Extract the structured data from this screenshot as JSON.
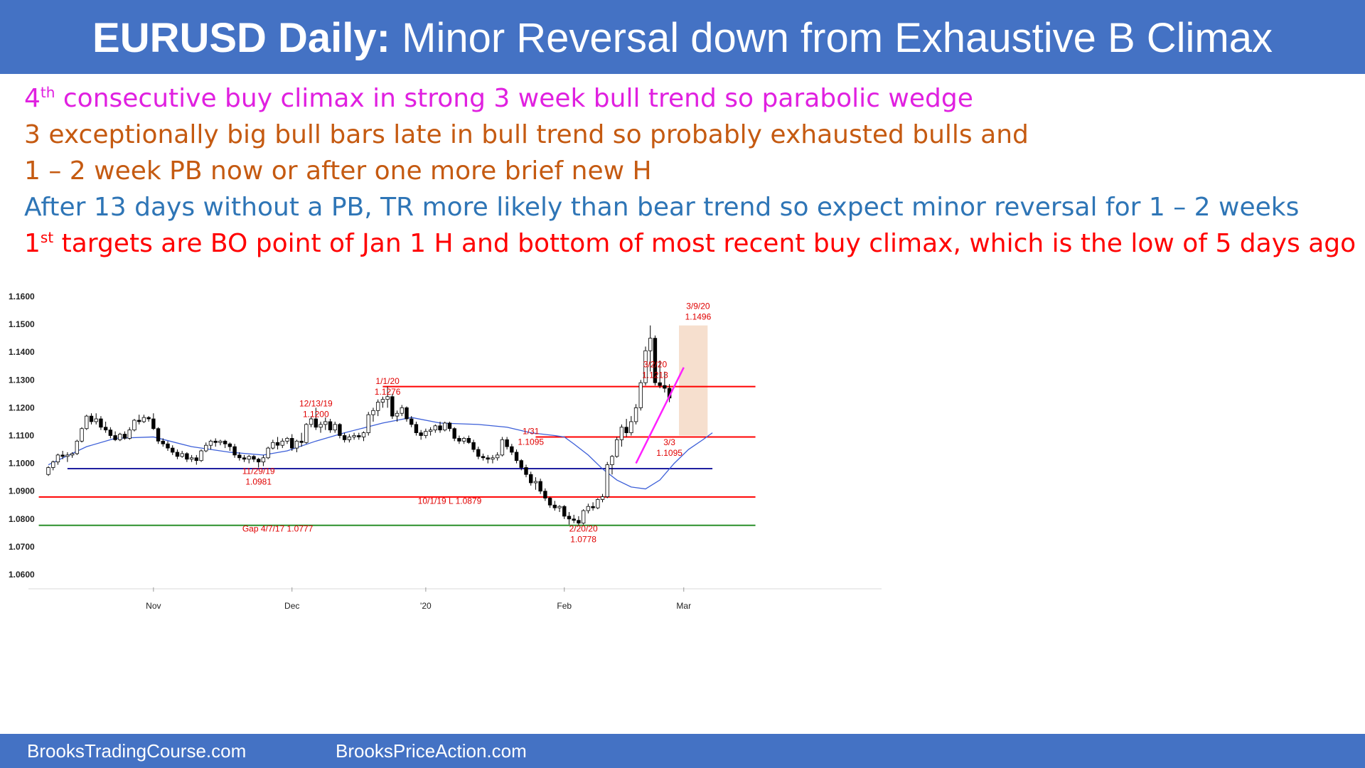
{
  "title": {
    "bold": "EURUSD Daily:",
    "rest": "Minor Reversal down from Exhaustive B Climax"
  },
  "notes": [
    {
      "pre": "4",
      "sup": "th",
      "text": " consecutive buy climax in strong 3 week bull trend so parabolic wedge",
      "color": "#e020e0"
    },
    {
      "pre": "",
      "sup": "",
      "text": "3 exceptionally big bull bars late in bull trend so probably exhausted bulls and",
      "color": "#c55a11"
    },
    {
      "pre": "",
      "sup": "",
      "text": "1 – 2 week PB now or after one more brief new H",
      "color": "#c55a11"
    },
    {
      "pre": "",
      "sup": "",
      "text": "After 13 days without a PB, TR more likely than bear trend so expect minor reversal for 1 – 2 weeks",
      "color": "#2e75b6"
    },
    {
      "pre": "1",
      "sup": "st",
      "text": " targets are BO point of Jan 1 H and bottom of most recent buy climax, which is the low of 5 days ago",
      "color": "#ff0000"
    }
  ],
  "footer": {
    "left": "BrooksTradingCourse.com",
    "right": "BrooksPriceAction.com"
  },
  "colors": {
    "accent": "#4472c4",
    "bull_body": "#ffffff",
    "bear_body": "#000000",
    "moving_average": "#3c5fd8",
    "red_line": "#ff0000",
    "blue_line": "#1f1fa0",
    "green_line": "#2a8f2a",
    "wedge": "#ff20ff",
    "climax_box": "#f4d9c6"
  },
  "chart_data": {
    "type": "candlestick",
    "ylim": [
      1.06,
      1.16
    ],
    "yticks": [
      "1.1600",
      "1.1500",
      "1.1400",
      "1.1300",
      "1.1200",
      "1.1100",
      "1.1000",
      "1.0900",
      "1.0800",
      "1.0700",
      "1.0600"
    ],
    "xticks": [
      {
        "label": "Nov",
        "bar": 22
      },
      {
        "label": "Dec",
        "bar": 51
      },
      {
        "label": "'20",
        "bar": 79
      },
      {
        "label": "Feb",
        "bar": 108
      },
      {
        "label": "Mar",
        "bar": 133
      }
    ],
    "candles": [
      [
        1.096,
        1.099,
        1.0955,
        1.0985
      ],
      [
        1.0985,
        1.101,
        1.0975,
        1.1005
      ],
      [
        1.1005,
        1.1035,
        1.0995,
        1.103
      ],
      [
        1.103,
        1.1045,
        1.1015,
        1.1025
      ],
      [
        1.1025,
        1.104,
        1.1005,
        1.103
      ],
      [
        1.103,
        1.104,
        1.102,
        1.1035
      ],
      [
        1.1035,
        1.1085,
        1.103,
        1.108
      ],
      [
        1.108,
        1.113,
        1.1075,
        1.1125
      ],
      [
        1.1125,
        1.1175,
        1.112,
        1.117
      ],
      [
        1.117,
        1.118,
        1.114,
        1.115
      ],
      [
        1.115,
        1.118,
        1.114,
        1.116
      ],
      [
        1.116,
        1.117,
        1.112,
        1.113
      ],
      [
        1.113,
        1.115,
        1.111,
        1.112
      ],
      [
        1.112,
        1.113,
        1.109,
        1.11
      ],
      [
        1.11,
        1.1115,
        1.108,
        1.1085
      ],
      [
        1.1085,
        1.111,
        1.108,
        1.1105
      ],
      [
        1.1105,
        1.1115,
        1.1085,
        1.109
      ],
      [
        1.109,
        1.113,
        1.1085,
        1.112
      ],
      [
        1.112,
        1.116,
        1.1115,
        1.1155
      ],
      [
        1.1155,
        1.1175,
        1.114,
        1.115
      ],
      [
        1.115,
        1.1175,
        1.1145,
        1.1165
      ],
      [
        1.1165,
        1.117,
        1.115,
        1.116
      ],
      [
        1.116,
        1.118,
        1.112,
        1.1125
      ],
      [
        1.1125,
        1.113,
        1.107,
        1.108
      ],
      [
        1.108,
        1.109,
        1.106,
        1.107
      ],
      [
        1.107,
        1.108,
        1.1045,
        1.1055
      ],
      [
        1.1055,
        1.1065,
        1.103,
        1.104
      ],
      [
        1.104,
        1.105,
        1.1015,
        1.1025
      ],
      [
        1.1025,
        1.1045,
        1.102,
        1.1035
      ],
      [
        1.1035,
        1.104,
        1.1005,
        1.1015
      ],
      [
        1.1015,
        1.103,
        1.1005,
        1.102
      ],
      [
        1.102,
        1.103,
        1.0995,
        1.101
      ],
      [
        1.101,
        1.105,
        1.1005,
        1.1045
      ],
      [
        1.1045,
        1.1075,
        1.104,
        1.1065
      ],
      [
        1.1065,
        1.1085,
        1.105,
        1.108
      ],
      [
        1.108,
        1.109,
        1.106,
        1.1075
      ],
      [
        1.1075,
        1.1085,
        1.1065,
        1.108
      ],
      [
        1.108,
        1.1085,
        1.1055,
        1.107
      ],
      [
        1.107,
        1.1075,
        1.1045,
        1.106
      ],
      [
        1.106,
        1.107,
        1.102,
        1.103
      ],
      [
        1.103,
        1.104,
        1.101,
        1.102
      ],
      [
        1.102,
        1.103,
        1.1005,
        1.1015
      ],
      [
        1.1015,
        1.103,
        1.1,
        1.1025
      ],
      [
        1.1025,
        1.103,
        1.1005,
        1.1015
      ],
      [
        1.1015,
        1.102,
        1.0985,
        1.1005
      ],
      [
        1.1005,
        1.103,
        1.099,
        1.102
      ],
      [
        1.102,
        1.106,
        1.1015,
        1.1055
      ],
      [
        1.1055,
        1.1085,
        1.105,
        1.1075
      ],
      [
        1.1075,
        1.1095,
        1.105,
        1.1065
      ],
      [
        1.1065,
        1.109,
        1.1055,
        1.108
      ],
      [
        1.108,
        1.1095,
        1.107,
        1.109
      ],
      [
        1.109,
        1.1105,
        1.1045,
        1.1055
      ],
      [
        1.1055,
        1.1085,
        1.104,
        1.108
      ],
      [
        1.108,
        1.111,
        1.106,
        1.1075
      ],
      [
        1.1075,
        1.1145,
        1.107,
        1.114
      ],
      [
        1.114,
        1.117,
        1.113,
        1.116
      ],
      [
        1.116,
        1.12,
        1.112,
        1.113
      ],
      [
        1.113,
        1.115,
        1.111,
        1.114
      ],
      [
        1.114,
        1.1165,
        1.112,
        1.115
      ],
      [
        1.115,
        1.116,
        1.111,
        1.112
      ],
      [
        1.112,
        1.115,
        1.111,
        1.114
      ],
      [
        1.114,
        1.1145,
        1.109,
        1.11
      ],
      [
        1.11,
        1.111,
        1.1075,
        1.1085
      ],
      [
        1.1085,
        1.1105,
        1.1075,
        1.1095
      ],
      [
        1.1095,
        1.111,
        1.1085,
        1.11
      ],
      [
        1.11,
        1.111,
        1.1085,
        1.1095
      ],
      [
        1.1095,
        1.1115,
        1.108,
        1.111
      ],
      [
        1.111,
        1.1185,
        1.11,
        1.1175
      ],
      [
        1.1175,
        1.12,
        1.115,
        1.119
      ],
      [
        1.119,
        1.123,
        1.117,
        1.122
      ],
      [
        1.122,
        1.124,
        1.12,
        1.123
      ],
      [
        1.123,
        1.1276,
        1.12,
        1.124
      ],
      [
        1.124,
        1.125,
        1.116,
        1.117
      ],
      [
        1.117,
        1.119,
        1.115,
        1.118
      ],
      [
        1.118,
        1.121,
        1.117,
        1.12
      ],
      [
        1.12,
        1.1205,
        1.115,
        1.116
      ],
      [
        1.116,
        1.117,
        1.113,
        1.114
      ],
      [
        1.114,
        1.115,
        1.11,
        1.111
      ],
      [
        1.111,
        1.112,
        1.1085,
        1.11
      ],
      [
        1.11,
        1.1125,
        1.109,
        1.1115
      ],
      [
        1.1115,
        1.113,
        1.11,
        1.112
      ],
      [
        1.112,
        1.114,
        1.111,
        1.1135
      ],
      [
        1.1135,
        1.115,
        1.111,
        1.112
      ],
      [
        1.112,
        1.115,
        1.1115,
        1.1145
      ],
      [
        1.1145,
        1.115,
        1.1115,
        1.1125
      ],
      [
        1.1125,
        1.113,
        1.108,
        1.109
      ],
      [
        1.109,
        1.11,
        1.107,
        1.108
      ],
      [
        1.108,
        1.1095,
        1.107,
        1.109
      ],
      [
        1.109,
        1.11,
        1.107,
        1.1075
      ],
      [
        1.1075,
        1.1085,
        1.104,
        1.105
      ],
      [
        1.105,
        1.106,
        1.1015,
        1.1025
      ],
      [
        1.1025,
        1.1035,
        1.101,
        1.102
      ],
      [
        1.102,
        1.103,
        1.1,
        1.1015
      ],
      [
        1.1015,
        1.103,
        1.1,
        1.102
      ],
      [
        1.102,
        1.104,
        1.101,
        1.103
      ],
      [
        1.103,
        1.1095,
        1.1025,
        1.1085
      ],
      [
        1.1085,
        1.1095,
        1.105,
        1.106
      ],
      [
        1.106,
        1.107,
        1.103,
        1.104
      ],
      [
        1.104,
        1.105,
        1.1,
        1.101
      ],
      [
        1.101,
        1.1015,
        1.0975,
        1.0985
      ],
      [
        1.0985,
        1.0995,
        1.095,
        1.096
      ],
      [
        1.096,
        1.097,
        1.092,
        1.093
      ],
      [
        1.093,
        1.095,
        1.0905,
        1.0935
      ],
      [
        1.0935,
        1.0945,
        1.089,
        1.09
      ],
      [
        1.09,
        1.091,
        1.0865,
        1.0875
      ],
      [
        1.0875,
        1.088,
        1.084,
        1.085
      ],
      [
        1.085,
        1.0865,
        1.083,
        1.084
      ],
      [
        1.084,
        1.085,
        1.0825,
        1.0845
      ],
      [
        1.0845,
        1.085,
        1.08,
        1.081
      ],
      [
        1.081,
        1.0825,
        1.078,
        1.08
      ],
      [
        1.08,
        1.0815,
        1.0785,
        1.0795
      ],
      [
        1.0795,
        1.081,
        1.0778,
        1.0785
      ],
      [
        1.0785,
        1.0835,
        1.078,
        1.083
      ],
      [
        1.083,
        1.0855,
        1.082,
        1.0845
      ],
      [
        1.0845,
        1.086,
        1.083,
        1.084
      ],
      [
        1.084,
        1.0875,
        1.0835,
        1.087
      ],
      [
        1.087,
        1.089,
        1.086,
        1.088
      ],
      [
        1.088,
        1.1005,
        1.0875,
        1.0995
      ],
      [
        1.0995,
        1.103,
        1.096,
        1.1025
      ],
      [
        1.1025,
        1.1095,
        1.102,
        1.1085
      ],
      [
        1.1085,
        1.114,
        1.106,
        1.113
      ],
      [
        1.113,
        1.116,
        1.1095,
        1.111
      ],
      [
        1.111,
        1.117,
        1.11,
        1.115
      ],
      [
        1.115,
        1.1213,
        1.114,
        1.12
      ],
      [
        1.12,
        1.13,
        1.119,
        1.129
      ],
      [
        1.129,
        1.142,
        1.128,
        1.1405
      ],
      [
        1.1405,
        1.1496,
        1.133,
        1.145
      ],
      [
        1.145,
        1.146,
        1.128,
        1.129
      ],
      [
        1.129,
        1.137,
        1.127,
        1.128
      ],
      [
        1.128,
        1.133,
        1.1255,
        1.127
      ],
      [
        1.127,
        1.1285,
        1.122,
        1.1235
      ]
    ],
    "moving_average": [
      [
        0,
        1.0995
      ],
      [
        8,
        1.106
      ],
      [
        14,
        1.109
      ],
      [
        22,
        1.1095
      ],
      [
        30,
        1.106
      ],
      [
        38,
        1.104
      ],
      [
        45,
        1.103
      ],
      [
        50,
        1.1045
      ],
      [
        56,
        1.108
      ],
      [
        62,
        1.111
      ],
      [
        70,
        1.1145
      ],
      [
        76,
        1.1165
      ],
      [
        82,
        1.1145
      ],
      [
        90,
        1.114
      ],
      [
        96,
        1.113
      ],
      [
        101,
        1.111
      ],
      [
        106,
        1.11
      ],
      [
        108,
        1.1095
      ],
      [
        110,
        1.107
      ],
      [
        113,
        1.103
      ],
      [
        116,
        1.098
      ],
      [
        119,
        1.094
      ],
      [
        122,
        1.0915
      ],
      [
        125,
        1.0908
      ],
      [
        128,
        1.094
      ],
      [
        131,
        1.1
      ],
      [
        134,
        1.105
      ],
      [
        137,
        1.1085
      ],
      [
        139,
        1.111
      ]
    ],
    "levels": [
      {
        "name": "jan1-high-line",
        "y": 1.1276,
        "from": 70,
        "to": 148,
        "color": "#ff0000"
      },
      {
        "name": "jan31-high-line",
        "y": 1.1095,
        "from": 102,
        "to": 148,
        "color": "#ff0000"
      },
      {
        "name": "nov29-low-line",
        "y": 1.0981,
        "from": 4,
        "to": 139,
        "color": "#1f1fa0"
      },
      {
        "name": "oct1-low-line",
        "y": 1.0879,
        "from": -2,
        "to": 148,
        "color": "#ff0000"
      },
      {
        "name": "gap-line",
        "y": 1.0777,
        "from": -2,
        "to": 148,
        "color": "#2a8f2a"
      }
    ],
    "annotations": [
      {
        "name": "anno-dec13",
        "lines": [
          "12/13/19",
          "1.1200"
        ],
        "bar": 56,
        "y": 1.1205,
        "color": "#e00000"
      },
      {
        "name": "anno-jan1",
        "lines": [
          "1/1/20",
          "1.1276"
        ],
        "bar": 71,
        "y": 1.1285,
        "color": "#e00000"
      },
      {
        "name": "anno-jan31",
        "lines": [
          "1/31",
          "1.1095"
        ],
        "bar": 101,
        "y": 1.1105,
        "color": "#e00000"
      },
      {
        "name": "anno-nov29",
        "lines": [
          "11/29/19",
          "1.0981"
        ],
        "bar": 44,
        "y": 1.0962,
        "color": "#e00000"
      },
      {
        "name": "anno-oct1",
        "lines": [
          "10/1/19 L 1.0879"
        ],
        "bar": 84,
        "y": 1.0855,
        "color": "#e00000"
      },
      {
        "name": "anno-gap",
        "lines": [
          "Gap 4/7/17 1.0777"
        ],
        "bar": 48,
        "y": 1.0755,
        "color": "#2a8f2a"
      },
      {
        "name": "anno-feb20",
        "lines": [
          "2/20/20",
          "1.0778"
        ],
        "bar": 112,
        "y": 1.0755,
        "color": "#e00000"
      },
      {
        "name": "anno-mar2",
        "lines": [
          "3/2/20",
          "1.1213"
        ],
        "bar": 127,
        "y": 1.1345,
        "color": "#e00000"
      },
      {
        "name": "anno-mar3",
        "lines": [
          "3/3",
          "1.1095"
        ],
        "bar": 130,
        "y": 1.1065,
        "color": "#e00000"
      },
      {
        "name": "anno-mar9",
        "lines": [
          "3/9/20",
          "1.1496"
        ],
        "bar": 136,
        "y": 1.1555,
        "color": "#e00000"
      }
    ],
    "wedge": {
      "from": [
        123,
        1.1
      ],
      "to": [
        133,
        1.1345
      ]
    },
    "climax_box": {
      "from_bar": 132,
      "to_bar": 138,
      "top": 1.1496,
      "bottom": 1.11
    }
  }
}
